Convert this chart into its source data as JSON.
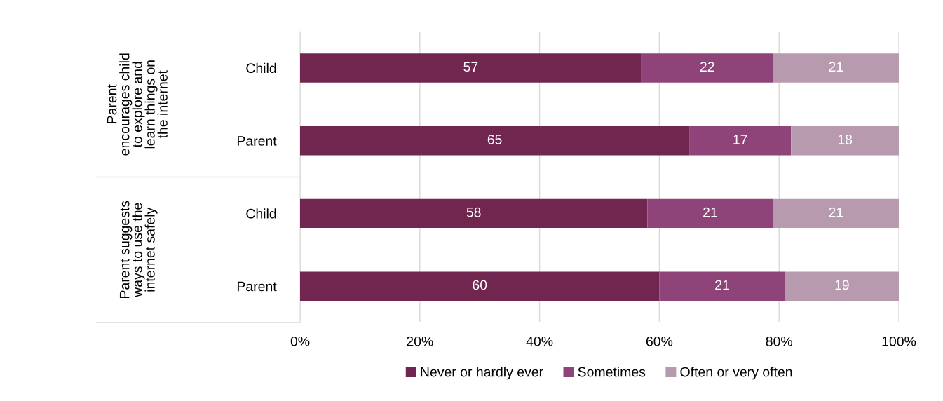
{
  "chart_data": {
    "type": "bar",
    "orientation": "horizontal",
    "stacked": true,
    "categories": [
      "Child",
      "Parent",
      "Child",
      "Parent"
    ],
    "series": [
      {
        "name": "Never or hardly ever",
        "color": "#70264f",
        "values": [
          57,
          65,
          58,
          60
        ]
      },
      {
        "name": "Sometimes",
        "color": "#8e4479",
        "values": [
          22,
          17,
          21,
          21
        ]
      },
      {
        "name": "Often or very often",
        "color": "#b89aae",
        "values": [
          21,
          18,
          21,
          19
        ]
      }
    ],
    "xlim": [
      0,
      100
    ],
    "xticks": [
      {
        "value": 0,
        "label": "0%"
      },
      {
        "value": 20,
        "label": "20%"
      },
      {
        "value": 40,
        "label": "40%"
      },
      {
        "value": 60,
        "label": "60%"
      },
      {
        "value": 80,
        "label": "80%"
      },
      {
        "value": 100,
        "label": "100%"
      }
    ],
    "annotations": [
      "Parent\nencourages child\nto explore and\nlearn things on\nthe internet",
      "Parent suggests\nways to use the\ninternet safely"
    ],
    "data_labels": true,
    "grid": "x",
    "legend": "bottom"
  }
}
